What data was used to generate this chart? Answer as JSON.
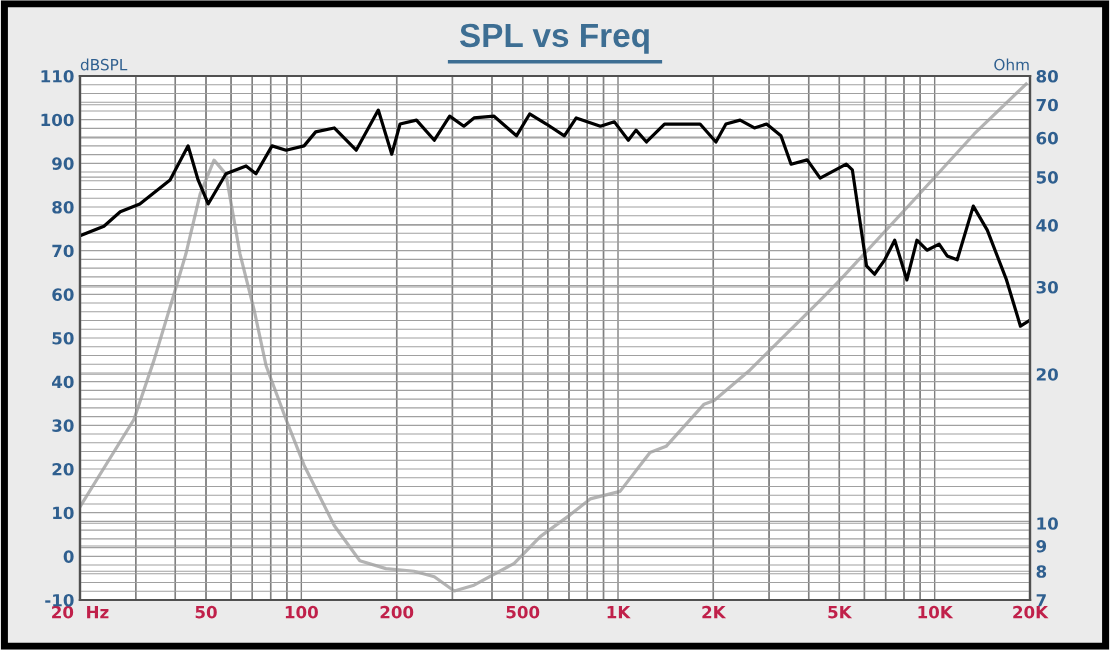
{
  "chart_data": [
    {
      "type": "line",
      "title": "SPL vs Freq",
      "ylabel": "dBSPL",
      "log": "x",
      "grid": true,
      "marker": "none",
      "line_style": "solid",
      "xlim": [
        20,
        20000
      ],
      "xticks": [
        {
          "value": 20,
          "label": "20  Hz"
        },
        50,
        100,
        200,
        500,
        {
          "value": 1000,
          "label": "1K"
        },
        {
          "value": 2000,
          "label": "2K"
        },
        {
          "value": 5000,
          "label": "5K"
        },
        {
          "value": 10000,
          "label": "10K"
        },
        {
          "value": 20000,
          "label": "20K"
        }
      ],
      "ylim": [
        -10,
        110
      ],
      "yticks": [
        -10,
        0,
        10,
        20,
        30,
        40,
        50,
        60,
        70,
        80,
        90,
        100,
        110
      ],
      "series": [
        {
          "color": "#000000",
          "x": [
            20,
            23.8,
            26.8,
            30.9,
            38.5,
            43.9,
            47.2,
            50.8,
            57.8,
            66.9,
            71.9,
            80.8,
            89.5,
            102,
            111,
            127,
            149,
            175,
            193,
            205,
            231,
            263,
            294,
            326,
            351,
            406,
            478,
            526,
            594,
            677,
            738,
            880,
            974,
            1078,
            1140,
            1230,
            1402,
            1816,
            2038,
            2192,
            2430,
            2696,
            2946,
            3270,
            3520,
            3958,
            4348,
            5258,
            5496,
            6094,
            6458,
            6956,
            7478,
            8170,
            8790,
            9456,
            10330,
            10950,
            11780,
            13240,
            14660,
            16860,
            18660,
            20000
          ],
          "values": [
            73.4,
            75.6,
            78.9,
            80.7,
            86.2,
            94,
            86.2,
            80.7,
            87.6,
            89.4,
            87.6,
            94,
            93,
            94,
            97.2,
            98.1,
            93,
            102.2,
            92.1,
            99,
            99.9,
            95.3,
            100.8,
            98.5,
            100.4,
            100.8,
            96.3,
            101.3,
            99,
            96.3,
            100.4,
            98.5,
            99.5,
            95.3,
            97.6,
            94.9,
            99,
            99,
            94.9,
            99,
            99.9,
            98.1,
            99,
            96.3,
            89.8,
            90.8,
            86.6,
            89.8,
            88.5,
            66.5,
            64.6,
            67.9,
            72.4,
            63.3,
            72.4,
            70.1,
            71.5,
            68.8,
            67.9,
            80.2,
            74.7,
            63.3,
            52.7,
            54.1
          ]
        }
      ]
    },
    {
      "type": "line",
      "ylabel": "Ohm",
      "log": "xy",
      "tick_labels": "y",
      "grid": true,
      "marker": "none",
      "line_style": "solid",
      "xlim": [
        20,
        20000
      ],
      "ylim": [
        7,
        80
      ],
      "yticks": [
        7,
        8,
        9,
        10,
        20,
        30,
        40,
        50,
        60,
        70,
        80
      ],
      "series": [
        {
          "color": "#b4b4b4",
          "x": [
            20,
            29.6,
            34.3,
            39.6,
            43.2,
            47.9,
            53,
            57.8,
            64,
            70.9,
            77.4,
            89.5,
            102,
            127,
            153,
            185,
            227,
            263,
            304,
            351,
            470,
            568,
            706,
            817,
            1015,
            1262,
            1419,
            1870,
            2012,
            2612,
            3024,
            4348,
            5030,
            8612,
            13330,
            19450
          ],
          "values": [
            10.8,
            16.2,
            21.4,
            29,
            35,
            46.2,
            54.1,
            50.7,
            35,
            27,
            20.8,
            16.2,
            13.1,
            9.9,
            8.4,
            8.1,
            8.0,
            7.8,
            7.3,
            7.5,
            8.3,
            9.4,
            10.4,
            11.2,
            11.6,
            13.9,
            14.3,
            17.4,
            17.7,
            20.4,
            22.4,
            28.2,
            31,
            45,
            61.1,
            77.1
          ]
        }
      ]
    }
  ]
}
